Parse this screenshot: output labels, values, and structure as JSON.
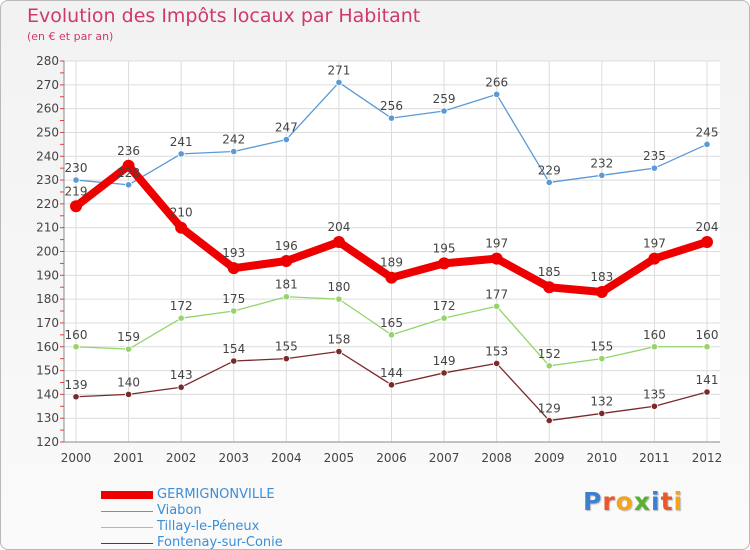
{
  "title": "Evolution des Impôts locaux par Habitant",
  "subtitle": "(en € et par an)",
  "logo": {
    "letters": [
      {
        "ch": "P",
        "color": "#3a7fd0"
      },
      {
        "ch": "r",
        "color": "#e8582a"
      },
      {
        "ch": "o",
        "color": "#f2a51a"
      },
      {
        "ch": "x",
        "color": "#59b031"
      },
      {
        "ch": "i",
        "color": "#3a7fd0"
      },
      {
        "ch": "t",
        "color": "#e8582a"
      },
      {
        "ch": "i",
        "color": "#f2a51a"
      }
    ]
  },
  "chart_data": {
    "type": "line",
    "x": [
      "2000",
      "2001",
      "2002",
      "2003",
      "2004",
      "2005",
      "2006",
      "2007",
      "2008",
      "2009",
      "2010",
      "2011",
      "2012"
    ],
    "ylim": [
      120,
      280
    ],
    "yticks": [
      120,
      130,
      140,
      150,
      160,
      170,
      180,
      190,
      200,
      210,
      220,
      230,
      240,
      250,
      260,
      270,
      280
    ],
    "grid": true,
    "legend_position": "bottom-left",
    "series": [
      {
        "name": "Viabon",
        "color": "#5a9ad5",
        "values": [
          230,
          228,
          241,
          242,
          247,
          271,
          256,
          259,
          266,
          229,
          232,
          235,
          245
        ]
      },
      {
        "name": "Tillay-le-Péneux",
        "color": "#95d46a",
        "values": [
          160,
          159,
          172,
          175,
          181,
          180,
          165,
          172,
          177,
          152,
          155,
          160,
          160
        ]
      },
      {
        "name": "Fontenay-sur-Conie",
        "color": "#7a2a2a",
        "values": [
          139,
          140,
          143,
          154,
          155,
          158,
          144,
          149,
          153,
          129,
          132,
          135,
          141
        ]
      },
      {
        "name": "GERMIGNONVILLE",
        "color": "#ee0000",
        "values": [
          219,
          236,
          210,
          193,
          196,
          204,
          189,
          195,
          197,
          185,
          183,
          197,
          204
        ]
      }
    ],
    "legend_order": [
      "GERMIGNONVILLE",
      "Viabon",
      "Tillay-le-Péneux",
      "Fontenay-sur-Conie"
    ]
  }
}
